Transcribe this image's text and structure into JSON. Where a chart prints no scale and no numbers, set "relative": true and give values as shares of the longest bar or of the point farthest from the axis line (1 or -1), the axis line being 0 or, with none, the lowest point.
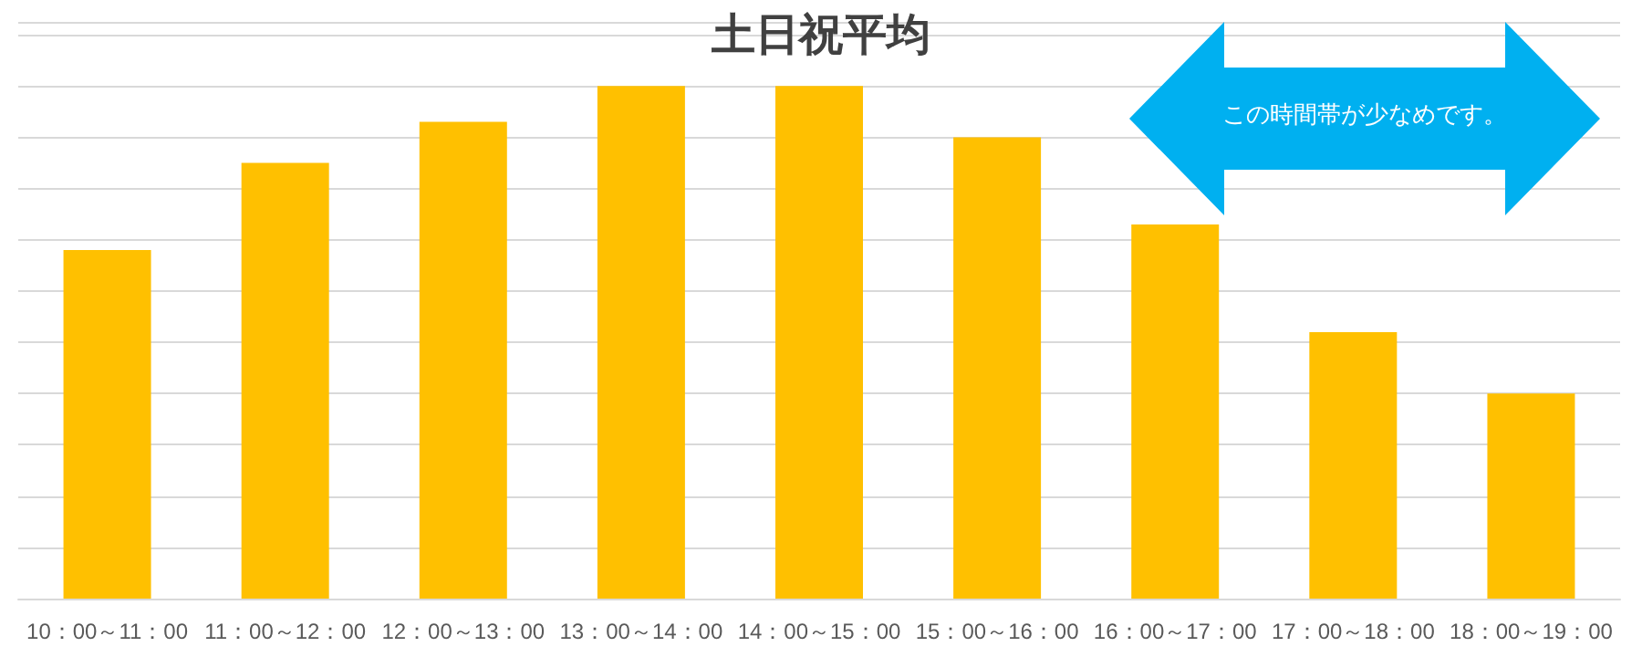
{
  "chart_data": {
    "type": "bar",
    "title": "土日祝平均",
    "categories": [
      "10：00～11：00",
      "11：00～12：00",
      "12：00～13：00",
      "13：00～14：00",
      "14：00～15：00",
      "15：00～16：00",
      "16：00～17：00",
      "17：00～18：00",
      "18：00～19：00"
    ],
    "values": [
      0.68,
      0.85,
      0.93,
      1.0,
      1.0,
      0.9,
      0.73,
      0.52,
      0.4
    ],
    "color": "#ffc000",
    "relative": true,
    "grid": "y",
    "annotations": [
      "この時間帯が少なめです。"
    ]
  }
}
